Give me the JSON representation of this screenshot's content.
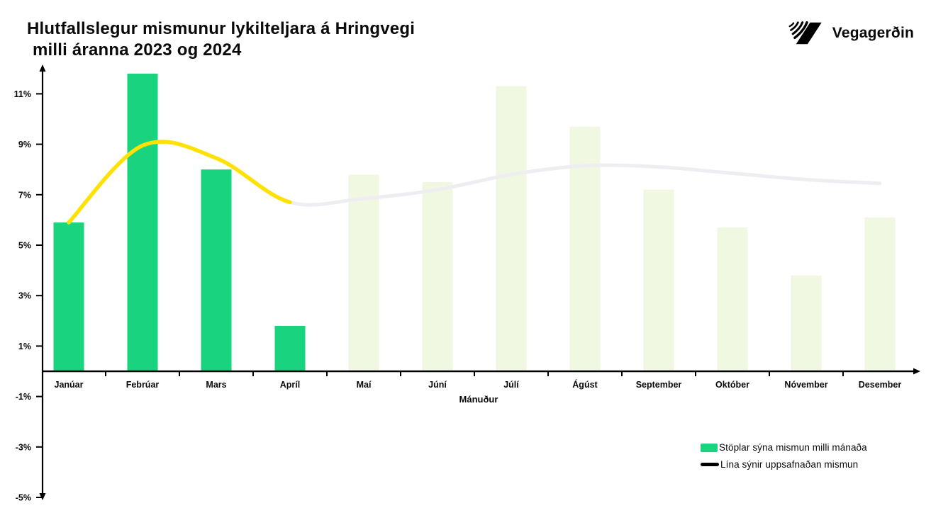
{
  "page": {
    "title_line1": "Hlutfallslegur mismunur lykilteljara á Hringvegi",
    "title_line2": "milli áranna 2023 og 2024"
  },
  "logo": {
    "text": "Vegagerðin"
  },
  "legend": {
    "bars_label": "Stöplar sýna mismun milli mánaða",
    "line_label": "Lína sýnir uppsafnaðan mismun"
  },
  "colors": {
    "bar_active": "#19d37e",
    "bar_faded": "#f0f8e2",
    "line_active": "#ffe103",
    "line_faded": "#eeedf1",
    "axis": "#000000"
  },
  "chart_data": {
    "type": "bar",
    "subtype": "bar-with-line-overlay",
    "title": "Hlutfallslegur mismunur lykilteljara á Hringvegi milli áranna 2023 og 2024",
    "categories": [
      "Janúar",
      "Febrúar",
      "Mars",
      "Apríl",
      "Maí",
      "Júní",
      "Júlí",
      "Ágúst",
      "September",
      "Október",
      "Nóvember",
      "Desember"
    ],
    "series": [
      {
        "name": "Stöplar sýna mismun milli mánaða",
        "type": "bar",
        "values": [
          5.9,
          11.8,
          8.0,
          1.8,
          7.8,
          7.5,
          11.3,
          9.7,
          7.2,
          5.7,
          3.8,
          6.1
        ],
        "note": "bars for Janúar–Apríl drawn in solid green (actual), Maí–Desember faded pale green",
        "active_through_index": 3
      },
      {
        "name": "Lína sýnir uppsafnaðan mismun",
        "type": "line",
        "values": [
          5.9,
          8.95,
          8.45,
          6.7,
          6.85,
          7.2,
          7.8,
          8.15,
          8.1,
          7.85,
          7.6,
          7.45
        ],
        "note": "line drawn yellow through Apríl (actual), faded light grey Maí–Desember",
        "active_through_index": 3
      }
    ],
    "xlabel": "Mánuður",
    "ylabel": "",
    "y_ticks": [
      11,
      9,
      7,
      5,
      3,
      1,
      -1,
      -3,
      -5
    ],
    "y_tick_suffix": "%",
    "ylim": [
      -5,
      12.5
    ],
    "grid": false,
    "legend_position": "bottom-right"
  }
}
